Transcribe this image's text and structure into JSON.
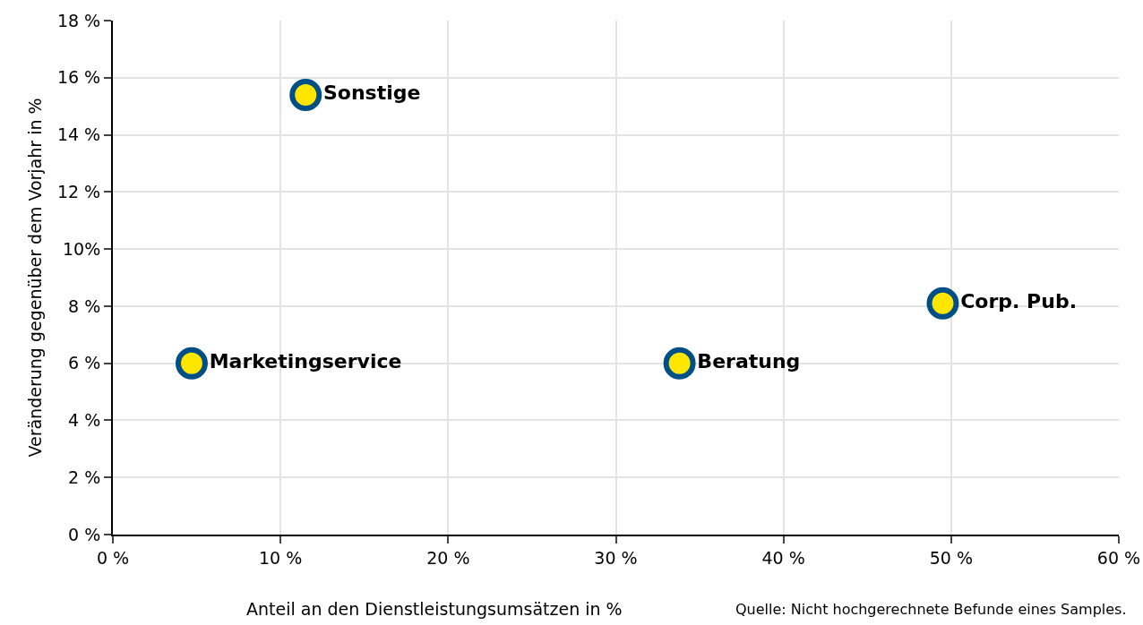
{
  "chart_data": {
    "type": "scatter",
    "xlabel": "Anteil an den Dienstleistungsumsätzen in %",
    "ylabel": "Veränderung gegenüber dem Vorjahr in %",
    "series": [
      {
        "name": "Sonstige",
        "color": "#ffe600",
        "x": [
          11.5
        ],
        "values": [
          15.4
        ]
      },
      {
        "name": "Marketingservice",
        "color": "#ffe600",
        "x": [
          4.7
        ],
        "values": [
          6.0
        ]
      },
      {
        "name": "Beratung",
        "color": "#ffe600",
        "x": [
          33.8
        ],
        "values": [
          6.0
        ]
      },
      {
        "name": "Corp. Pub.",
        "color": "#ffe600",
        "x": [
          49.5
        ],
        "values": [
          8.1
        ]
      }
    ],
    "xlim": [
      0,
      60
    ],
    "xticks": [
      {
        "value": 0,
        "label": "0 %"
      },
      {
        "value": 10,
        "label": "10 %"
      },
      {
        "value": 20,
        "label": "20 %"
      },
      {
        "value": 30,
        "label": "30 %"
      },
      {
        "value": 40,
        "label": "40 %"
      },
      {
        "value": 50,
        "label": "50 %"
      },
      {
        "value": 60,
        "label": "60 %"
      }
    ],
    "ylim": [
      0,
      18
    ],
    "yticks": [
      {
        "value": 0,
        "label": "0 %"
      },
      {
        "value": 2,
        "label": "2 %"
      },
      {
        "value": 4,
        "label": "4 %"
      },
      {
        "value": 6,
        "label": "6 %"
      },
      {
        "value": 8,
        "label": "8 %"
      },
      {
        "value": 10,
        "label": "10%"
      },
      {
        "value": 12,
        "label": "12 %"
      },
      {
        "value": 14,
        "label": "14 %"
      },
      {
        "value": 16,
        "label": "16 %"
      },
      {
        "value": 18,
        "label": "18 %"
      }
    ],
    "grid": true,
    "legend": false,
    "marker": "circle",
    "annotations": [
      "Quelle: Nicht hochgerechnete Befunde eines Samples."
    ]
  }
}
